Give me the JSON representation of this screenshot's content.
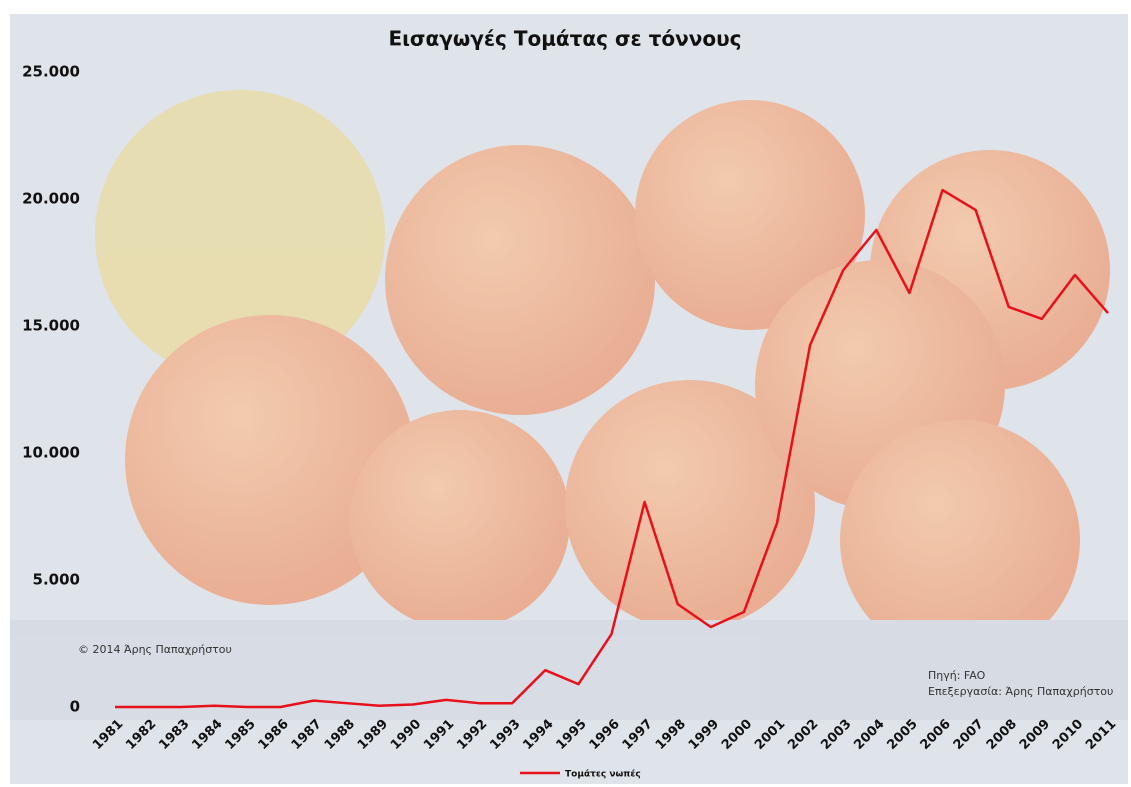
{
  "chart_data": {
    "type": "line",
    "title": "Εισαγωγές Τομάτας σε τόννους",
    "categories": [
      "1981",
      "1982",
      "1983",
      "1984",
      "1985",
      "1986",
      "1987",
      "1988",
      "1989",
      "1990",
      "1991",
      "1992",
      "1993",
      "1994",
      "1995",
      "1996",
      "1997",
      "1998",
      "1999",
      "2000",
      "2001",
      "2002",
      "2003",
      "2004",
      "2005",
      "2006",
      "2007",
      "2008",
      "2009",
      "2010",
      "2011"
    ],
    "series": [
      {
        "name": "Τομάτες νωπές",
        "color": "#e8101a",
        "values": [
          0,
          0,
          0,
          50,
          0,
          0,
          250,
          150,
          50,
          100,
          280,
          150,
          150,
          1450,
          900,
          2870,
          8070,
          4050,
          3150,
          3740,
          7240,
          14250,
          17200,
          18780,
          16300,
          20350,
          19570,
          15750,
          15280,
          17010,
          15510
        ]
      }
    ],
    "ylim": [
      0,
      25000
    ],
    "yticks": [
      0,
      {
        "value": 5000,
        "label": "5.000"
      },
      {
        "value": 10000,
        "label": "10.000"
      },
      {
        "value": 15000,
        "label": "15.000"
      },
      {
        "value": 20000,
        "label": "20.000"
      },
      {
        "value": 25000,
        "label": "25.000"
      }
    ],
    "annotations": [
      "© 2014 Άρης Παπαχρήστου",
      "Πηγή: FAO",
      "Επεξεργασία: Άρης Παπαχρήστου"
    ]
  }
}
